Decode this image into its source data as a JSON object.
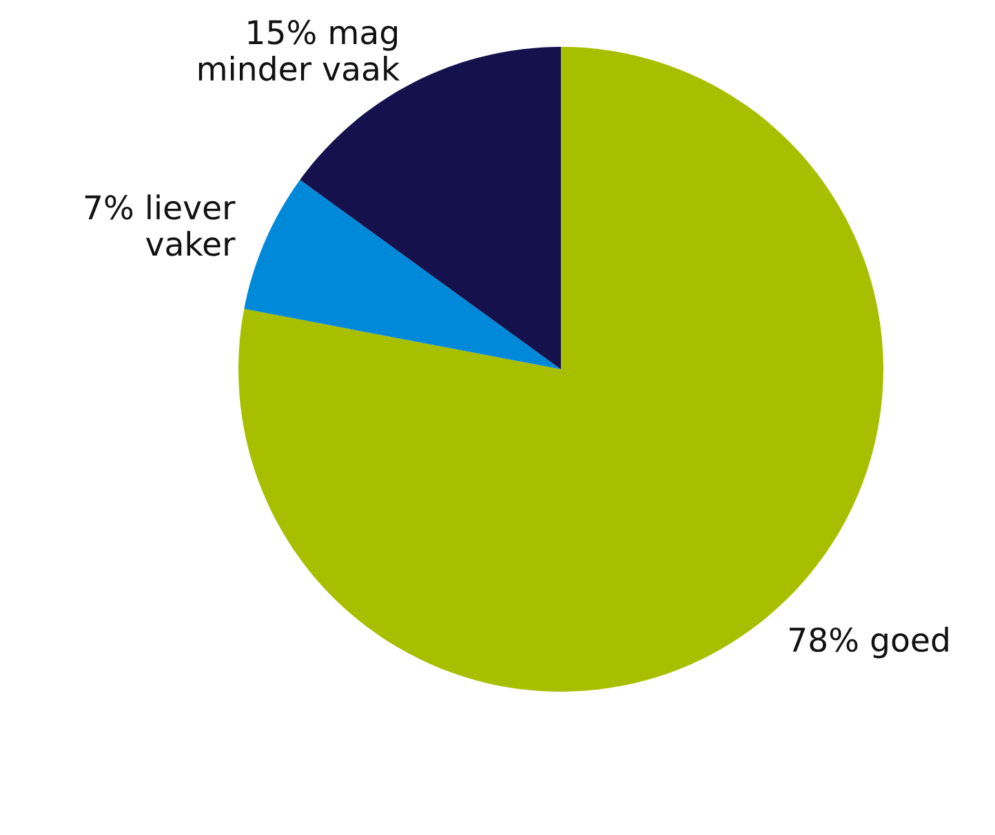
{
  "chart_data": {
    "type": "pie",
    "categories": [
      "78% goed",
      "7% liever\nvaker",
      "15% mag\nminder vaak"
    ],
    "values": [
      78,
      7,
      15
    ],
    "colors": [
      "#a8bf00",
      "#0088d9",
      "#15114d"
    ]
  }
}
